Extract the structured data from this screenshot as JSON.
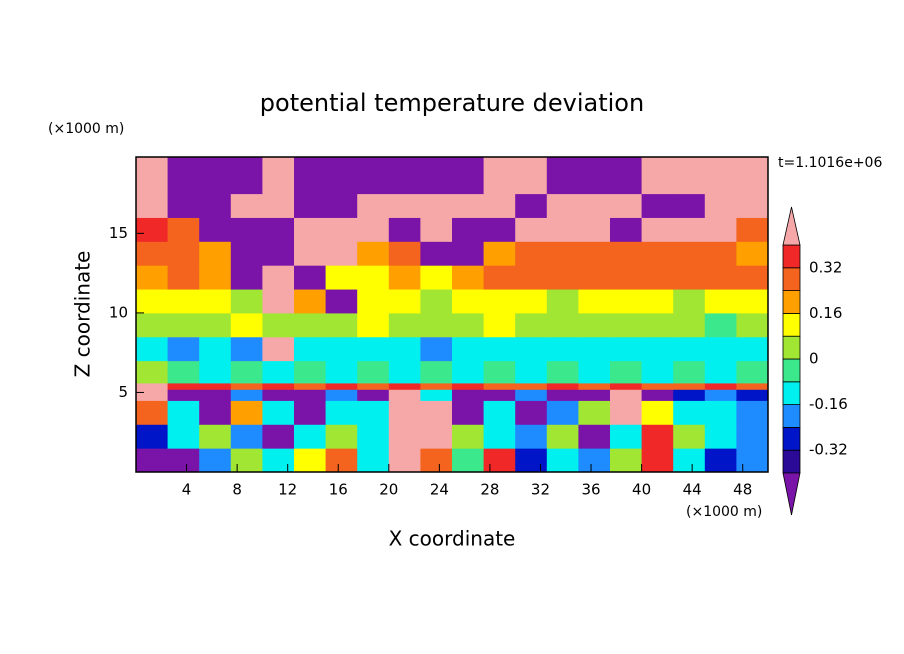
{
  "chart_data": {
    "type": "contour",
    "title": "potential temperature deviation",
    "x_label": "X coordinate",
    "y_label": "Z coordinate",
    "x_units": "(×1000 m)",
    "y_units": "(×1000 m)",
    "time_label": "t=1.1016e+06",
    "xlim": [
      0,
      50
    ],
    "ylim": [
      0,
      19.8
    ],
    "xticks": [
      4,
      8,
      12,
      16,
      20,
      24,
      28,
      32,
      36,
      40,
      44,
      48
    ],
    "yticks": [
      5,
      10,
      15
    ],
    "levels": [
      -0.4,
      -0.32,
      -0.24,
      -0.16,
      -0.08,
      0,
      0.08,
      0.16,
      0.24,
      0.32,
      0.4
    ],
    "colors": [
      "#7a14a8",
      "#2a0a96",
      "#0014c8",
      "#1e8cff",
      "#00f0f0",
      "#3ce88c",
      "#a0e632",
      "#ffff00",
      "#ffa000",
      "#f4641e",
      "#f02828",
      "#f6a8a8"
    ],
    "colorbar_ticks": [
      -0.32,
      -0.16,
      0,
      0.16,
      0.32
    ],
    "x_edges": [
      0,
      2.5,
      5,
      7.5,
      10,
      12.5,
      15,
      17.5,
      20,
      22.5,
      25,
      27.5,
      30,
      32.5,
      35,
      37.5,
      40,
      42.5,
      45,
      47.5,
      50
    ],
    "z_edges": [
      0,
      1.5,
      3,
      4.5,
      5.2,
      5.6,
      7,
      8.5,
      10,
      11.5,
      13,
      14.5,
      16,
      17.5,
      19.8
    ],
    "field": [
      [
        -0.45,
        -0.45,
        -0.2,
        0.0,
        -0.1,
        0.1,
        0.3,
        -0.1,
        0.45,
        0.3,
        -0.05,
        0.35,
        -0.3,
        -0.1,
        -0.2,
        0.0,
        0.38,
        -0.1,
        -0.3,
        -0.2
      ],
      [
        -0.3,
        -0.1,
        0.05,
        -0.2,
        -0.45,
        -0.15,
        0.0,
        -0.1,
        0.45,
        0.45,
        0.0,
        -0.1,
        -0.2,
        0.05,
        -0.45,
        -0.1,
        0.38,
        0.0,
        -0.1,
        -0.2
      ],
      [
        0.3,
        -0.1,
        -0.45,
        0.2,
        -0.1,
        -0.45,
        -0.15,
        -0.1,
        0.45,
        0.45,
        -0.45,
        -0.1,
        -0.45,
        -0.2,
        0.0,
        0.45,
        0.1,
        -0.1,
        -0.15,
        -0.2
      ],
      [
        0.45,
        -0.45,
        -0.45,
        -0.2,
        -0.45,
        -0.45,
        -0.2,
        -0.45,
        0.45,
        -0.1,
        -0.45,
        -0.45,
        -0.2,
        -0.45,
        -0.45,
        0.45,
        -0.45,
        -0.3,
        -0.2,
        -0.3
      ],
      [
        0.45,
        0.35,
        0.35,
        0.3,
        0.35,
        0.3,
        0.35,
        0.3,
        0.35,
        0.3,
        0.35,
        0.3,
        0.3,
        0.35,
        0.3,
        0.35,
        0.3,
        0.3,
        0.35,
        0.3
      ],
      [
        0.0,
        -0.05,
        -0.1,
        -0.05,
        -0.1,
        -0.05,
        -0.1,
        -0.05,
        -0.1,
        -0.05,
        -0.1,
        -0.05,
        -0.1,
        -0.05,
        -0.1,
        -0.05,
        -0.1,
        -0.05,
        -0.1,
        -0.05
      ],
      [
        -0.1,
        -0.2,
        -0.15,
        -0.2,
        0.45,
        -0.1,
        -0.15,
        -0.15,
        -0.1,
        -0.2,
        -0.15,
        -0.1,
        -0.15,
        -0.1,
        -0.15,
        -0.1,
        -0.15,
        -0.1,
        -0.15,
        -0.1
      ],
      [
        0.05,
        0.0,
        0.05,
        0.1,
        0.05,
        0.0,
        0.05,
        0.1,
        0.05,
        0.0,
        0.05,
        0.1,
        0.05,
        0.0,
        0.05,
        0.0,
        0.05,
        0.0,
        -0.05,
        0.05
      ],
      [
        0.1,
        0.15,
        0.1,
        0.05,
        0.45,
        0.2,
        -0.45,
        0.1,
        0.15,
        0.05,
        0.1,
        0.15,
        0.1,
        0.05,
        0.1,
        0.15,
        0.1,
        0.05,
        0.1,
        0.1
      ],
      [
        0.2,
        0.25,
        0.2,
        -0.45,
        0.45,
        -0.45,
        0.15,
        0.1,
        0.2,
        0.15,
        0.2,
        0.25,
        0.3,
        0.3,
        0.3,
        0.3,
        0.3,
        0.3,
        0.3,
        0.25
      ],
      [
        0.3,
        0.25,
        0.2,
        -0.45,
        -0.45,
        0.45,
        0.45,
        0.2,
        0.3,
        -0.45,
        -0.45,
        0.2,
        0.25,
        0.25,
        0.3,
        0.3,
        0.25,
        0.25,
        0.25,
        0.2
      ],
      [
        0.35,
        0.3,
        -0.45,
        -0.45,
        -0.45,
        0.45,
        0.45,
        0.45,
        -0.45,
        0.45,
        -0.45,
        -0.45,
        0.45,
        0.45,
        0.45,
        -0.45,
        0.45,
        0.45,
        0.45,
        0.3
      ],
      [
        0.45,
        -0.45,
        -0.45,
        0.45,
        0.45,
        -0.45,
        -0.45,
        0.45,
        0.45,
        0.45,
        0.45,
        0.45,
        -0.45,
        0.45,
        0.45,
        0.45,
        -0.45,
        -0.45,
        0.45,
        0.45
      ],
      [
        0.45,
        -0.45,
        -0.45,
        -0.45,
        0.45,
        -0.45,
        -0.45,
        -0.45,
        -0.45,
        -0.45,
        -0.45,
        0.45,
        0.45,
        -0.45,
        -0.45,
        -0.45,
        0.45,
        0.45,
        0.45,
        0.45
      ]
    ]
  }
}
